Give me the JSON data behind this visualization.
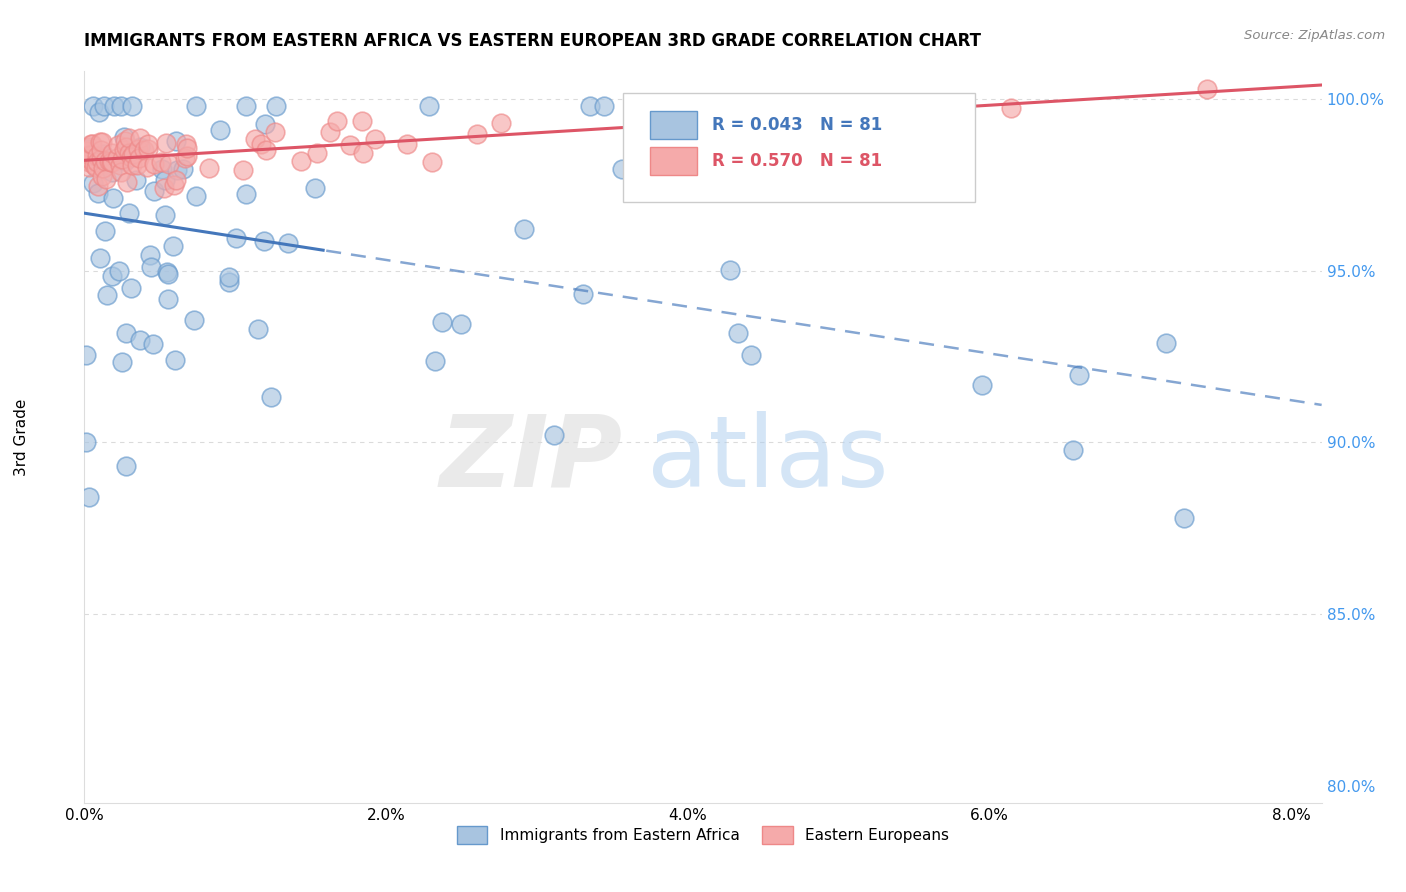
{
  "title": "IMMIGRANTS FROM EASTERN AFRICA VS EASTERN EUROPEAN 3RD GRADE CORRELATION CHART",
  "source": "Source: ZipAtlas.com",
  "ylabel": "3rd Grade",
  "xlim": [
    0.0,
    0.082
  ],
  "ylim": [
    0.795,
    1.008
  ],
  "xtick_labels": [
    "0.0%",
    "2.0%",
    "4.0%",
    "6.0%",
    "8.0%"
  ],
  "xtick_vals": [
    0.0,
    0.02,
    0.04,
    0.06,
    0.08
  ],
  "ytick_labels": [
    "80.0%",
    "85.0%",
    "90.0%",
    "95.0%",
    "100.0%"
  ],
  "ytick_vals": [
    0.8,
    0.85,
    0.9,
    0.95,
    1.0
  ],
  "blue_face_color": "#A8C4E0",
  "blue_edge_color": "#6699CC",
  "pink_face_color": "#F5AAAA",
  "pink_edge_color": "#EE8888",
  "blue_line_color": "#4477BB",
  "pink_line_color": "#DD5566",
  "blue_R": 0.043,
  "pink_R": 0.57,
  "N": 81,
  "ytick_color": "#4499EE",
  "grid_color": "#CCCCCC",
  "legend_text_blue_color": "#4477BB",
  "legend_text_pink_color": "#DD5566",
  "watermark_zip_color": "#DDDDDD",
  "watermark_atlas_color": "#AACCEE"
}
